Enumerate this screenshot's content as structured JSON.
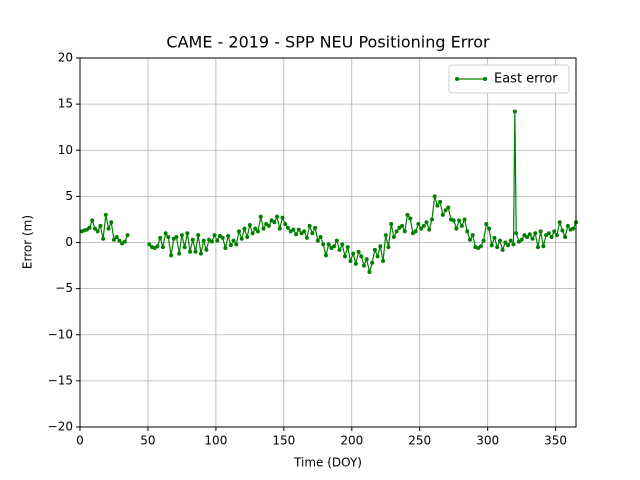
{
  "chart_data": {
    "type": "line",
    "title": "CAME - 2019 - SPP NEU Positioning Error",
    "xlabel": "Time (DOY)",
    "ylabel": "Error (m)",
    "x": [
      1,
      3,
      5,
      7,
      9,
      11,
      13,
      15,
      17,
      19,
      21,
      23,
      25,
      27,
      29,
      31,
      33,
      35,
      42,
      51,
      53,
      55,
      57,
      59,
      61,
      63,
      65,
      67,
      69,
      71,
      73,
      75,
      77,
      79,
      81,
      83,
      85,
      87,
      89,
      91,
      93,
      95,
      97,
      99,
      101,
      103,
      105,
      107,
      109,
      111,
      113,
      115,
      117,
      119,
      121,
      123,
      125,
      127,
      129,
      131,
      133,
      135,
      137,
      139,
      141,
      143,
      145,
      147,
      149,
      151,
      153,
      155,
      157,
      159,
      161,
      163,
      165,
      167,
      169,
      171,
      173,
      175,
      177,
      179,
      181,
      183,
      185,
      187,
      189,
      191,
      193,
      195,
      197,
      199,
      201,
      203,
      205,
      207,
      209,
      211,
      213,
      215,
      217,
      219,
      221,
      223,
      225,
      227,
      229,
      231,
      233,
      235,
      237,
      239,
      241,
      243,
      245,
      247,
      249,
      251,
      253,
      255,
      257,
      259,
      261,
      263,
      265,
      267,
      269,
      271,
      273,
      275,
      277,
      279,
      281,
      283,
      285,
      287,
      289,
      291,
      293,
      295,
      297,
      299,
      301,
      303,
      305,
      307,
      309,
      311,
      313,
      315,
      317,
      319,
      320,
      321,
      323,
      325,
      327,
      329,
      331,
      333,
      335,
      337,
      339,
      341,
      343,
      345,
      347,
      349,
      351,
      353,
      355,
      357,
      359,
      361,
      363,
      365
    ],
    "series": [
      {
        "name": "East error",
        "color": "#008000",
        "values": [
          1.2,
          1.3,
          1.4,
          1.6,
          2.4,
          1.5,
          1.2,
          1.8,
          0.4,
          3.0,
          1.5,
          2.2,
          0.3,
          0.6,
          0.2,
          -0.1,
          0.1,
          0.8,
          null,
          -0.2,
          -0.5,
          -0.6,
          -0.4,
          0.5,
          -0.5,
          1.0,
          0.6,
          -1.4,
          0.4,
          0.6,
          -1.2,
          0.8,
          -0.5,
          1.0,
          -1.0,
          0.3,
          -1.0,
          0.8,
          -1.2,
          0.2,
          -0.8,
          0.3,
          0.1,
          0.8,
          0.2,
          0.7,
          0.5,
          -0.6,
          0.7,
          -0.3,
          0.2,
          -0.2,
          1.2,
          0.4,
          1.5,
          0.6,
          1.9,
          1.0,
          1.5,
          1.2,
          2.8,
          1.5,
          2.0,
          1.8,
          2.4,
          2.2,
          2.8,
          1.5,
          2.7,
          2.0,
          1.6,
          1.2,
          1.4,
          0.9,
          1.4,
          1.0,
          1.2,
          0.5,
          1.8,
          1.0,
          1.6,
          0.2,
          0.6,
          -0.2,
          -1.4,
          -0.2,
          -0.6,
          -0.4,
          0.2,
          -0.8,
          -0.2,
          -1.5,
          -0.5,
          -2.0,
          -1.2,
          -2.3,
          -1.0,
          -1.5,
          -2.5,
          -1.8,
          -3.2,
          -2.2,
          -0.8,
          -1.5,
          -0.4,
          -2.0,
          0.8,
          -0.5,
          2.0,
          0.6,
          1.2,
          1.6,
          1.8,
          1.2,
          3.0,
          2.6,
          1.0,
          1.2,
          2.0,
          1.5,
          1.8,
          2.2,
          1.4,
          2.5,
          5.0,
          4.0,
          4.4,
          3.0,
          3.5,
          3.8,
          2.5,
          2.4,
          1.5,
          2.4,
          1.8,
          2.5,
          1.2,
          0.3,
          0.8,
          -0.5,
          -0.6,
          -0.4,
          0.2,
          2.0,
          1.5,
          -0.3,
          0.5,
          -0.5,
          0.2,
          -0.8,
          0.0,
          -0.3,
          0.2,
          -0.2,
          14.2,
          1.0,
          0.1,
          0.3,
          0.8,
          0.6,
          0.9,
          0.4,
          1.0,
          -0.5,
          1.2,
          -0.4,
          0.8,
          1.0,
          0.6,
          1.2,
          0.8,
          2.2,
          1.3,
          0.6,
          1.8,
          1.4,
          1.5,
          2.2
        ]
      }
    ],
    "xlim": [
      0,
      365
    ],
    "ylim": [
      -20,
      20
    ],
    "xticks": [
      0,
      50,
      100,
      150,
      200,
      250,
      300,
      350
    ],
    "yticks": [
      {
        "value": -20,
        "label": "−20"
      },
      {
        "value": -15,
        "label": "−15"
      },
      {
        "value": -10,
        "label": "−10"
      },
      {
        "value": -5,
        "label": "−5"
      },
      0,
      5,
      10,
      15,
      20
    ],
    "grid": true,
    "legend": "upper right"
  }
}
